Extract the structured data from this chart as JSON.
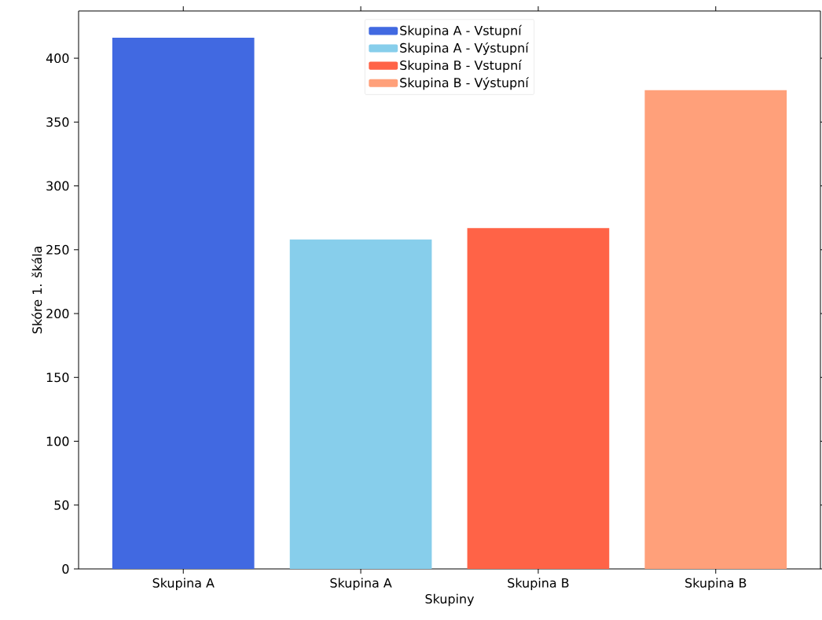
{
  "chart_data": {
    "type": "bar",
    "xlabel": "Skupiny",
    "ylabel": "Skóre 1. škála",
    "categories": [
      "Skupina A",
      "Skupina A",
      "Skupina B",
      "Skupina B"
    ],
    "series": [
      {
        "name": "Skupina A - Vstupní",
        "color": "#4169e1",
        "values": [
          416,
          null,
          null,
          null
        ]
      },
      {
        "name": "Skupina A - Výstupní",
        "color": "#87ceeb",
        "values": [
          null,
          258,
          null,
          null
        ]
      },
      {
        "name": "Skupina B - Vstupní",
        "color": "#ff6347",
        "values": [
          null,
          null,
          267,
          null
        ]
      },
      {
        "name": "Skupina B - Výstupní",
        "color": "#ffa07a",
        "values": [
          null,
          null,
          null,
          375
        ]
      }
    ],
    "ylim": [
      0,
      437
    ],
    "yticks": [
      0,
      50,
      100,
      150,
      200,
      250,
      300,
      350,
      400
    ],
    "legend": "top",
    "grid": false
  }
}
